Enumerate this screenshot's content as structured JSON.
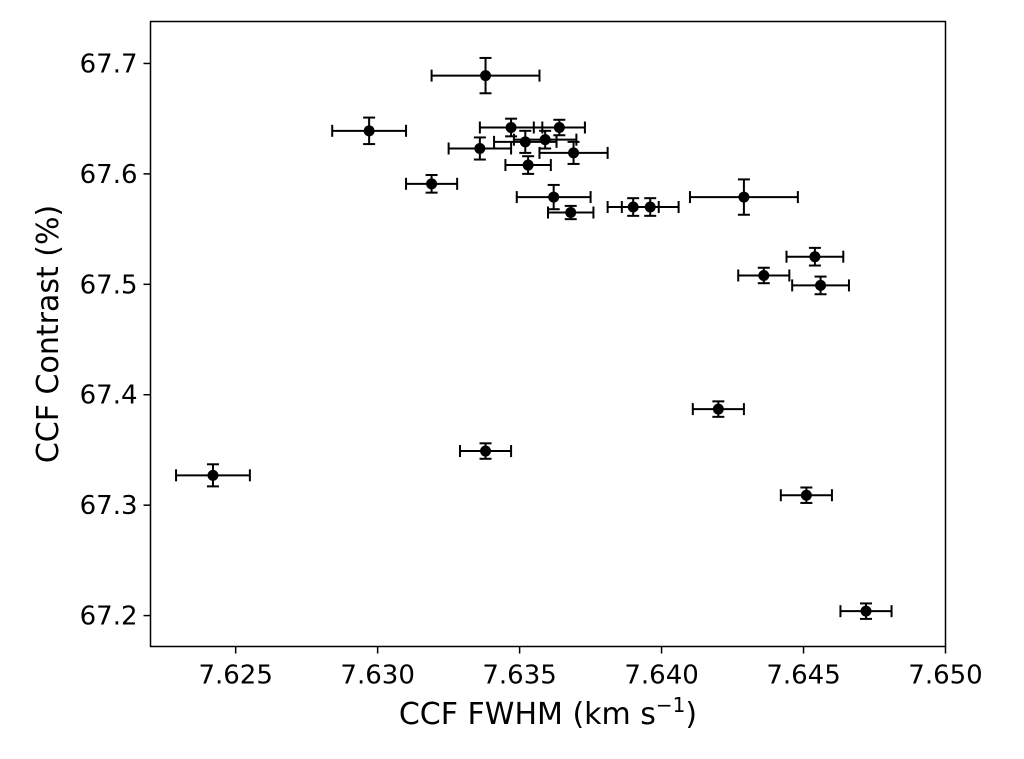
{
  "chart_data": {
    "type": "scatter",
    "xlabel": "CCF FWHM (km s",
    "xlabel_sup": "−1",
    "xlabel_end": ")",
    "ylabel": "CCF Contrast (%)",
    "xlim": [
      7.622,
      7.65
    ],
    "ylim": [
      67.172,
      67.738
    ],
    "x_ticks": [
      7.625,
      7.63,
      7.635,
      7.64,
      7.645,
      7.65
    ],
    "x_tick_labels": [
      "7.625",
      "7.630",
      "7.635",
      "7.640",
      "7.645",
      "7.650"
    ],
    "y_ticks": [
      67.2,
      67.3,
      67.4,
      67.5,
      67.6,
      67.7
    ],
    "y_tick_labels": [
      "67.2",
      "67.3",
      "67.4",
      "67.5",
      "67.6",
      "67.7"
    ],
    "grid": false,
    "marker_color": "#000000",
    "points": [
      {
        "x": 7.6242,
        "y": 67.327,
        "xerr": 0.0013,
        "yerr": 0.01
      },
      {
        "x": 7.6297,
        "y": 67.639,
        "xerr": 0.0013,
        "yerr": 0.012
      },
      {
        "x": 7.6319,
        "y": 67.591,
        "xerr": 0.0009,
        "yerr": 0.008
      },
      {
        "x": 7.6338,
        "y": 67.689,
        "xerr": 0.0019,
        "yerr": 0.016
      },
      {
        "x": 7.6336,
        "y": 67.623,
        "xerr": 0.0011,
        "yerr": 0.01
      },
      {
        "x": 7.6338,
        "y": 67.349,
        "xerr": 0.0009,
        "yerr": 0.007
      },
      {
        "x": 7.6347,
        "y": 67.642,
        "xerr": 0.0011,
        "yerr": 0.008
      },
      {
        "x": 7.6352,
        "y": 67.629,
        "xerr": 0.0011,
        "yerr": 0.01
      },
      {
        "x": 7.6359,
        "y": 67.631,
        "xerr": 0.0011,
        "yerr": 0.008
      },
      {
        "x": 7.6353,
        "y": 67.608,
        "xerr": 0.0008,
        "yerr": 0.008
      },
      {
        "x": 7.6364,
        "y": 67.642,
        "xerr": 0.0009,
        "yerr": 0.007
      },
      {
        "x": 7.6369,
        "y": 67.619,
        "xerr": 0.0012,
        "yerr": 0.01
      },
      {
        "x": 7.6362,
        "y": 67.579,
        "xerr": 0.0013,
        "yerr": 0.011
      },
      {
        "x": 7.6368,
        "y": 67.565,
        "xerr": 0.0008,
        "yerr": 0.006
      },
      {
        "x": 7.639,
        "y": 67.57,
        "xerr": 0.0009,
        "yerr": 0.008
      },
      {
        "x": 7.6396,
        "y": 67.57,
        "xerr": 0.001,
        "yerr": 0.008
      },
      {
        "x": 7.6429,
        "y": 67.579,
        "xerr": 0.0019,
        "yerr": 0.016
      },
      {
        "x": 7.642,
        "y": 67.387,
        "xerr": 0.0009,
        "yerr": 0.007
      },
      {
        "x": 7.6436,
        "y": 67.508,
        "xerr": 0.0009,
        "yerr": 0.007
      },
      {
        "x": 7.6454,
        "y": 67.525,
        "xerr": 0.001,
        "yerr": 0.008
      },
      {
        "x": 7.6456,
        "y": 67.499,
        "xerr": 0.001,
        "yerr": 0.008
      },
      {
        "x": 7.6451,
        "y": 67.309,
        "xerr": 0.0009,
        "yerr": 0.007
      },
      {
        "x": 7.6472,
        "y": 67.204,
        "xerr": 0.0009,
        "yerr": 0.007
      }
    ]
  }
}
